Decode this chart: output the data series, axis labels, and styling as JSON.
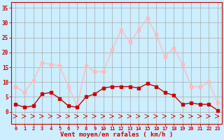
{
  "hours": [
    0,
    1,
    2,
    3,
    4,
    5,
    6,
    7,
    8,
    9,
    10,
    11,
    12,
    13,
    14,
    15,
    16,
    17,
    18,
    19,
    20,
    21,
    22,
    23
  ],
  "wind_mean": [
    2.5,
    1.5,
    2,
    6,
    6.5,
    4.5,
    2,
    1.5,
    5,
    6,
    8,
    8.5,
    8.5,
    8.5,
    8,
    9.5,
    8.5,
    6.5,
    5.5,
    2.5,
    3,
    2.5,
    2.5,
    0.5
  ],
  "wind_gust": [
    8.5,
    6.5,
    10.5,
    16.5,
    16,
    15.5,
    8.5,
    2,
    15.5,
    13.5,
    13.5,
    21,
    27.5,
    23.5,
    27.5,
    31.5,
    26,
    18.5,
    21.5,
    16,
    8.5,
    8.5,
    10,
    3
  ],
  "ylim": [
    0,
    37
  ],
  "yticks": [
    0,
    5,
    10,
    15,
    20,
    25,
    30,
    35
  ],
  "xlabel": "Vent moyen/en rafales ( km/h )",
  "bg_color": "#cceeff",
  "grid_color": "#aaaaaa",
  "mean_color": "#cc0000",
  "gust_color": "#ffbbbb",
  "axis_color": "#cc0000",
  "tick_color": "#cc0000",
  "marker_size": 2.5,
  "line_width": 1.0
}
